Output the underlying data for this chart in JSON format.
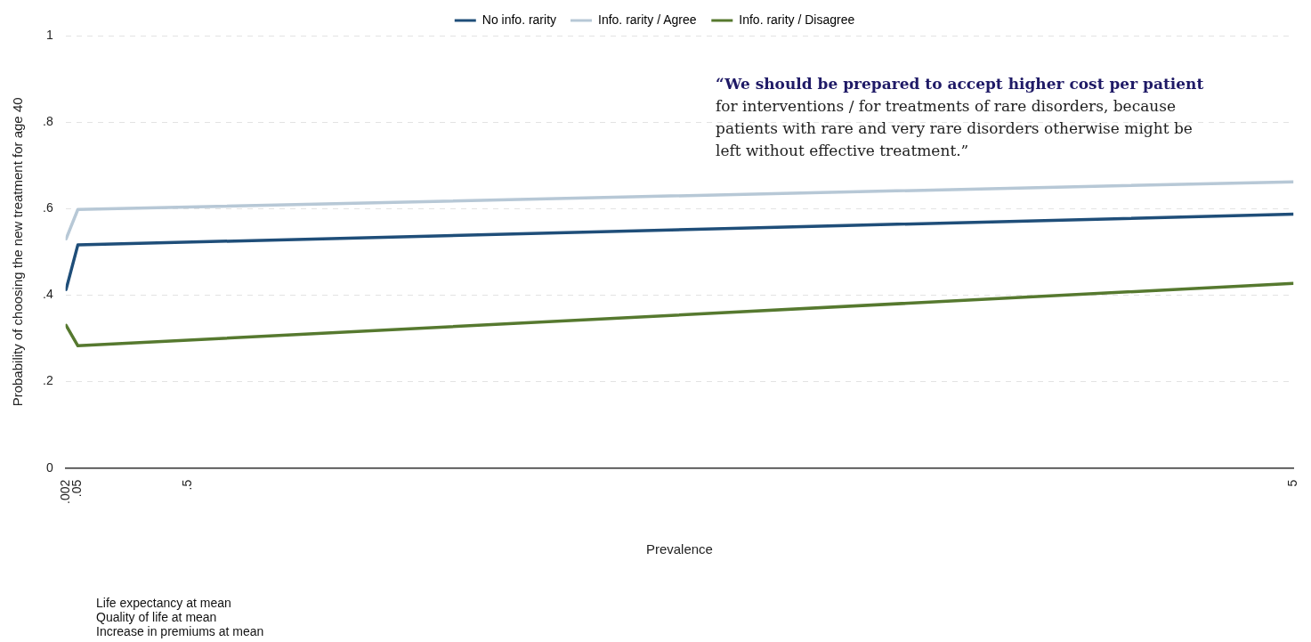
{
  "chart_data": {
    "type": "line",
    "xlabel": "Prevalence",
    "ylabel": "Probability of choosing the new treatment for age 40",
    "x": [
      0.002,
      0.05,
      5
    ],
    "series": [
      {
        "name": "No info. rarity",
        "color": "#1f4e79",
        "values": [
          0.413,
          0.516,
          0.587
        ]
      },
      {
        "name": "Info. rarity / Agree",
        "color": "#b7c8d6",
        "values": [
          0.53,
          0.598,
          0.662
        ]
      },
      {
        "name": "Info. rarity / Disagree",
        "color": "#56792f",
        "values": [
          0.33,
          0.283,
          0.427
        ]
      }
    ],
    "xlim": [
      0,
      5
    ],
    "xticks": [
      {
        "value": 0.002,
        "label": ".002"
      },
      {
        "value": 0.05,
        "label": ".05"
      },
      {
        "value": 0.5,
        "label": ".5"
      },
      5
    ],
    "ylim": [
      0,
      1
    ],
    "yticks": [
      0,
      {
        "value": 0.2,
        "label": ".2"
      },
      {
        "value": 0.4,
        "label": ".4"
      },
      {
        "value": 0.6,
        "label": ".6"
      },
      {
        "value": 0.8,
        "label": ".8"
      },
      1
    ],
    "grid": "y",
    "legend": "top",
    "marker": "none",
    "line_style": "solid",
    "annotations": [
      "“We should be prepared to accept higher cost per patient",
      "for interventions / for treatments of rare disorders, because patients with rare and very rare disorders otherwise might be left without effective treatment.”",
      "Life expectancy at mean",
      "Quality of life at mean",
      "Increase in premiums at mean"
    ]
  }
}
